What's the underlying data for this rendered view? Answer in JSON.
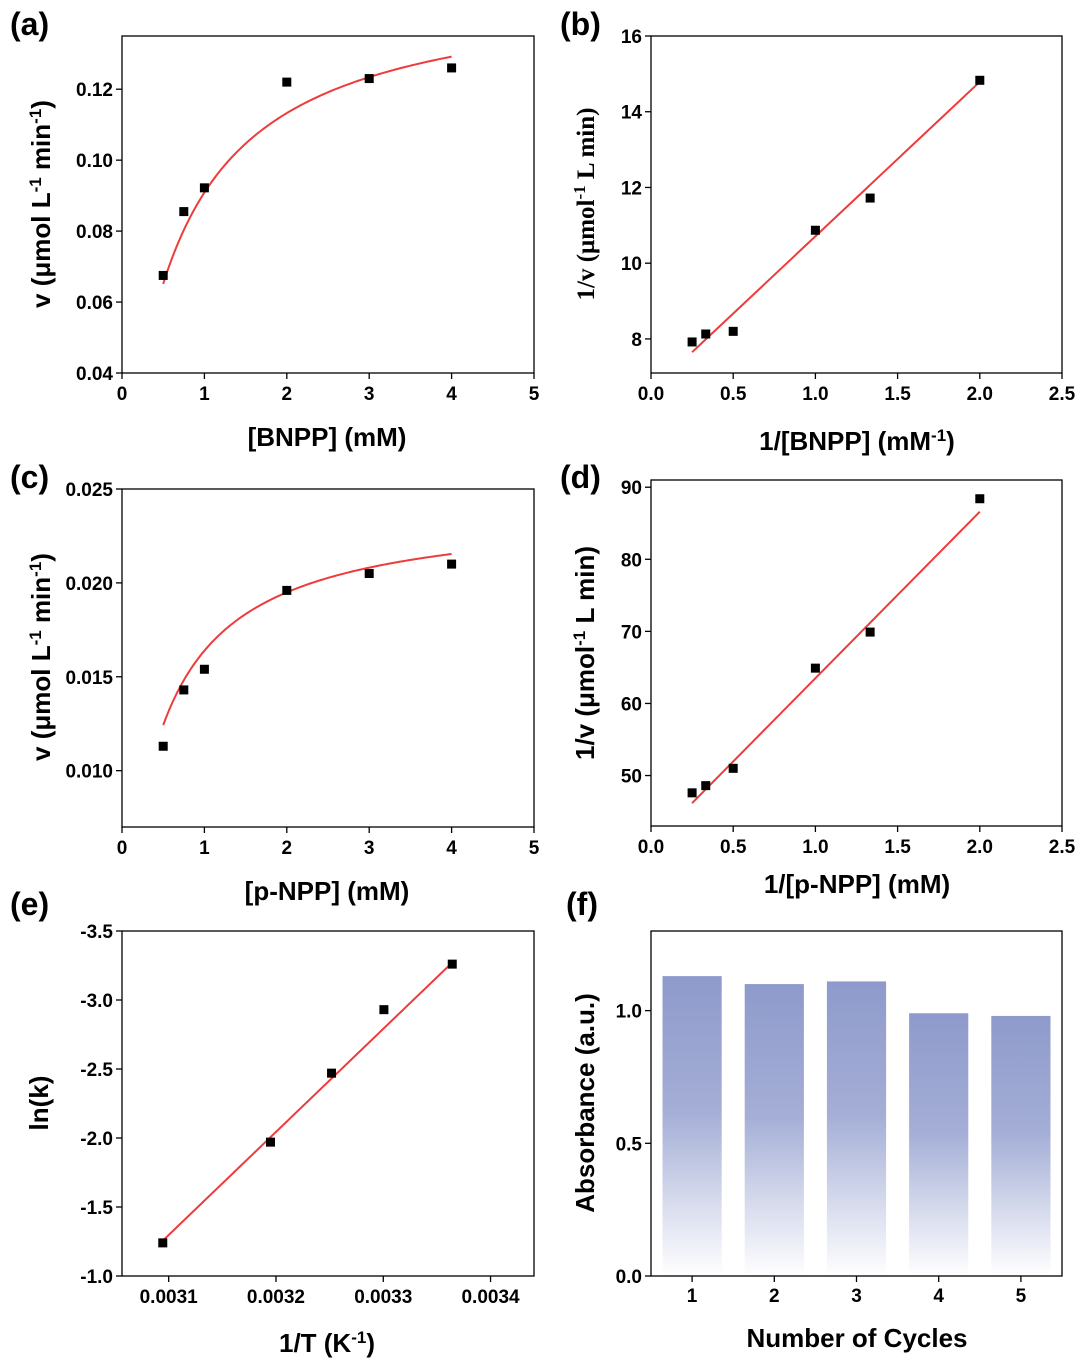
{
  "colors": {
    "fit": "#ee3b3b",
    "marker": "#000000",
    "bar_top": "#8e9acb",
    "bar_bottom": "#ffffff"
  },
  "chart_data": [
    {
      "id": "a",
      "type": "scatter",
      "panel_label": "(a)",
      "xlabel": "[BNPP] (mM)",
      "ylabel_main": "v (μmol L",
      "ylabel_sup1": "-1",
      "ylabel_mid": " min",
      "ylabel_sup2": "-1",
      "ylabel_end": ")",
      "xlim": [
        0,
        5
      ],
      "ylim": [
        0.04,
        0.135
      ],
      "xticks": [
        0,
        1,
        2,
        3,
        4,
        5
      ],
      "xtick_labels": [
        "0",
        "1",
        "2",
        "3",
        "4",
        "5"
      ],
      "yticks": [
        0.04,
        0.06,
        0.08,
        0.1,
        0.12
      ],
      "ytick_labels": [
        "0.04",
        "0.06",
        "0.08",
        "0.10",
        "0.12"
      ],
      "x": [
        0.5,
        0.75,
        1,
        2,
        3,
        4
      ],
      "y": [
        0.0675,
        0.0855,
        0.0922,
        0.122,
        0.123,
        0.126
      ],
      "fit": {
        "model": "michaelis-menten",
        "Vmax": 0.1503,
        "Km": 0.654,
        "range": [
          0.5,
          4
        ]
      }
    },
    {
      "id": "b",
      "type": "scatter",
      "panel_label": "(b)",
      "xlabel_main": "1/[BNPP] (mM",
      "xlabel_sup": "-1",
      "xlabel_end": ")",
      "ylabel_main": "1/v (μmol",
      "ylabel_sup": "-1",
      "ylabel_end": " L min)",
      "xlim": [
        0,
        2.5
      ],
      "ylim": [
        7.1,
        16
      ],
      "xticks": [
        0,
        0.5,
        1,
        1.5,
        2,
        2.5
      ],
      "xtick_labels": [
        "0.0",
        "0.5",
        "1.0",
        "1.5",
        "2.0",
        "2.5"
      ],
      "yticks": [
        8,
        10,
        12,
        14,
        16
      ],
      "ytick_labels": [
        "8",
        "10",
        "12",
        "14",
        "16"
      ],
      "x": [
        0.25,
        0.333,
        0.5,
        1.0,
        1.333,
        2.0
      ],
      "y": [
        7.92,
        8.13,
        8.2,
        10.87,
        11.72,
        14.83
      ],
      "fit": {
        "model": "linear",
        "slope": 4.08,
        "intercept": 6.63,
        "range": [
          0.25,
          2.0
        ]
      }
    },
    {
      "id": "c",
      "type": "scatter",
      "panel_label": "(c)",
      "xlabel": "[p-NPP] (mM)",
      "ylabel_main": "v (μmol L",
      "ylabel_sup1": "-1",
      "ylabel_mid": " min",
      "ylabel_sup2": "-1",
      "ylabel_end": ")",
      "xlim": [
        0,
        5
      ],
      "ylim": [
        0.007,
        0.025
      ],
      "xticks": [
        0,
        1,
        2,
        3,
        4,
        5
      ],
      "xtick_labels": [
        "0",
        "1",
        "2",
        "3",
        "4",
        "5"
      ],
      "yticks": [
        0.01,
        0.015,
        0.02,
        0.025
      ],
      "ytick_labels": [
        "0.010",
        "0.015",
        "0.020",
        "0.025"
      ],
      "x": [
        0.5,
        0.75,
        1,
        2,
        3,
        4
      ],
      "y": [
        0.0113,
        0.0143,
        0.0154,
        0.0196,
        0.0205,
        0.021
      ],
      "fit": {
        "model": "michaelis-menten",
        "Vmax": 0.02406,
        "Km": 0.4681,
        "range": [
          0.5,
          4
        ]
      }
    },
    {
      "id": "d",
      "type": "scatter",
      "panel_label": "(d)",
      "xlabel": "1/[p-NPP] (mM)",
      "ylabel_main": "1/v (μmol",
      "ylabel_sup": "-1",
      "ylabel_end": " L min)",
      "xlim": [
        0,
        2.5
      ],
      "ylim": [
        43,
        91
      ],
      "xticks": [
        0,
        0.5,
        1,
        1.5,
        2,
        2.5
      ],
      "xtick_labels": [
        "0.0",
        "0.5",
        "1.0",
        "1.5",
        "2.0",
        "2.5"
      ],
      "yticks": [
        50,
        60,
        70,
        80,
        90
      ],
      "ytick_labels": [
        "50",
        "60",
        "70",
        "80",
        "90"
      ],
      "x": [
        0.25,
        0.333,
        0.5,
        1.0,
        1.333,
        2.0
      ],
      "y": [
        47.6,
        48.6,
        51.0,
        64.9,
        69.9,
        88.4
      ],
      "fit": {
        "model": "linear",
        "slope": 23.1,
        "intercept": 40.4,
        "range": [
          0.25,
          2.0
        ]
      }
    },
    {
      "id": "e",
      "type": "scatter",
      "panel_label": "(e)",
      "xlabel_main": "1/T (K",
      "xlabel_sup": "-1",
      "xlabel_end": ")",
      "ylabel": "ln(k)",
      "xlim": [
        0.0030565,
        0.0034405
      ],
      "ylim": [
        -1.0,
        -3.5
      ],
      "xticks": [
        0.0031,
        0.0032,
        0.0033,
        0.0034
      ],
      "xtick_labels": [
        "0.0031",
        "0.0032",
        "0.0033",
        "0.0034"
      ],
      "yticks": [
        -1.0,
        -1.5,
        -2.0,
        -2.5,
        -3.0,
        -3.5
      ],
      "ytick_labels": [
        "-1.0",
        "-1.5",
        "-2.0",
        "-2.5",
        "-3.0",
        "-3.5"
      ],
      "x": [
        0.0030945,
        0.0031949,
        0.0032518,
        0.0033006,
        0.0033643
      ],
      "y": [
        -1.24,
        -1.97,
        -2.47,
        -2.93,
        -3.26
      ],
      "fit": {
        "model": "linear",
        "slope": -7470,
        "intercept": 21.86,
        "range": [
          0.0030945,
          0.0033643
        ]
      }
    },
    {
      "id": "f",
      "type": "bar",
      "panel_label": "(f)",
      "xlabel": "Number of Cycles",
      "ylabel": "Absorbance (a.u.)",
      "categories": [
        "1",
        "2",
        "3",
        "4",
        "5"
      ],
      "values": [
        1.13,
        1.1,
        1.11,
        0.99,
        0.98
      ],
      "ylim": [
        0,
        1.3
      ],
      "yticks": [
        0,
        0.5,
        1.0
      ],
      "ytick_labels": [
        "0.0",
        "0.5",
        "1.0"
      ]
    }
  ]
}
